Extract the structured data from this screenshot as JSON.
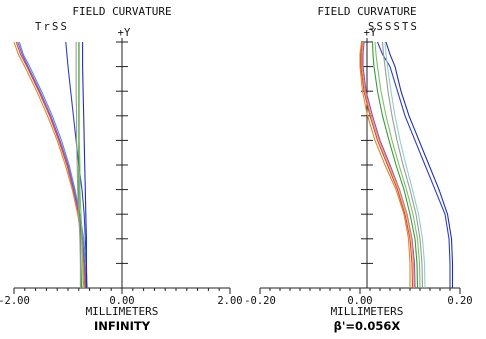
{
  "chart_data": [
    {
      "type": "line",
      "title": "FIELD CURVATURE",
      "axis_marker": "+Y",
      "xlabel": "MILLIMETERS",
      "condition": "INFINITY",
      "xlim": [
        -2.0,
        2.0
      ],
      "ylim": [
        0,
        1
      ],
      "x_tick_labels": [
        "-2.00",
        "0.00",
        "2.00"
      ],
      "legend_marks": [
        "T",
        "r",
        "S",
        "S"
      ],
      "legend_colors": [
        "#e3a14a",
        "#5a8fd6",
        "#7fbf6a",
        "#4a7fd0"
      ],
      "series": [
        {
          "color": "#2b3fc4",
          "points": [
            [
              -0.65,
              0.0
            ],
            [
              -0.66,
              0.1
            ],
            [
              -0.68,
              0.2
            ],
            [
              -0.7,
              0.3
            ],
            [
              -0.74,
              0.4
            ],
            [
              -0.8,
              0.5
            ],
            [
              -0.85,
              0.6
            ],
            [
              -0.9,
              0.7
            ],
            [
              -0.95,
              0.8
            ],
            [
              -1.0,
              0.9
            ],
            [
              -1.02,
              0.95
            ],
            [
              -1.04,
              1.0
            ]
          ]
        },
        {
          "color": "#d98a2a",
          "points": [
            [
              -0.7,
              0.0
            ],
            [
              -0.72,
              0.1
            ],
            [
              -0.75,
              0.2
            ],
            [
              -0.82,
              0.3
            ],
            [
              -0.92,
              0.4
            ],
            [
              -1.05,
              0.5
            ],
            [
              -1.2,
              0.6
            ],
            [
              -1.38,
              0.7
            ],
            [
              -1.58,
              0.8
            ],
            [
              -1.8,
              0.9
            ],
            [
              -1.92,
              0.95
            ],
            [
              -2.0,
              1.0
            ]
          ]
        },
        {
          "color": "#e04040",
          "points": [
            [
              -0.68,
              0.0
            ],
            [
              -0.7,
              0.1
            ],
            [
              -0.74,
              0.2
            ],
            [
              -0.8,
              0.3
            ],
            [
              -0.9,
              0.4
            ],
            [
              -1.02,
              0.5
            ],
            [
              -1.17,
              0.6
            ],
            [
              -1.34,
              0.7
            ],
            [
              -1.54,
              0.8
            ],
            [
              -1.76,
              0.9
            ],
            [
              -1.88,
              0.95
            ],
            [
              -1.96,
              1.0
            ]
          ]
        },
        {
          "color": "#8a4cc8",
          "points": [
            [
              -0.66,
              0.0
            ],
            [
              -0.69,
              0.1
            ],
            [
              -0.73,
              0.2
            ],
            [
              -0.79,
              0.3
            ],
            [
              -0.89,
              0.4
            ],
            [
              -1.0,
              0.5
            ],
            [
              -1.15,
              0.6
            ],
            [
              -1.32,
              0.7
            ],
            [
              -1.52,
              0.8
            ],
            [
              -1.74,
              0.9
            ],
            [
              -1.85,
              0.95
            ],
            [
              -1.93,
              1.0
            ]
          ]
        },
        {
          "color": "#4d8fdc",
          "points": [
            [
              -0.64,
              0.0
            ],
            [
              -0.67,
              0.1
            ],
            [
              -0.71,
              0.2
            ],
            [
              -0.78,
              0.3
            ],
            [
              -0.87,
              0.4
            ],
            [
              -0.98,
              0.5
            ],
            [
              -1.12,
              0.6
            ],
            [
              -1.29,
              0.7
            ],
            [
              -1.49,
              0.8
            ],
            [
              -1.71,
              0.9
            ],
            [
              -1.83,
              0.95
            ],
            [
              -1.9,
              1.0
            ]
          ]
        },
        {
          "color": "#3a9a3a",
          "points": [
            [
              -0.75,
              0.0
            ],
            [
              -0.76,
              0.1
            ],
            [
              -0.77,
              0.2
            ],
            [
              -0.79,
              0.3
            ],
            [
              -0.8,
              0.4
            ],
            [
              -0.8,
              0.5
            ],
            [
              -0.8,
              0.6
            ],
            [
              -0.8,
              0.7
            ],
            [
              -0.8,
              0.8
            ],
            [
              -0.8,
              0.9
            ],
            [
              -0.8,
              0.95
            ],
            [
              -0.8,
              1.0
            ]
          ]
        },
        {
          "color": "#7fbf6a",
          "points": [
            [
              -0.72,
              0.0
            ],
            [
              -0.73,
              0.1
            ],
            [
              -0.74,
              0.2
            ],
            [
              -0.76,
              0.3
            ],
            [
              -0.78,
              0.4
            ],
            [
              -0.78,
              0.5
            ],
            [
              -0.79,
              0.6
            ],
            [
              -0.79,
              0.7
            ],
            [
              -0.79,
              0.8
            ],
            [
              -0.79,
              0.9
            ],
            [
              -0.79,
              0.95
            ],
            [
              -0.79,
              1.0
            ]
          ]
        },
        {
          "color": "#1f2fb0",
          "points": [
            [
              -0.66,
              0.0
            ],
            [
              -0.66,
              0.1
            ],
            [
              -0.66,
              0.2
            ],
            [
              -0.67,
              0.3
            ],
            [
              -0.68,
              0.4
            ],
            [
              -0.69,
              0.5
            ],
            [
              -0.7,
              0.6
            ],
            [
              -0.71,
              0.7
            ],
            [
              -0.72,
              0.8
            ],
            [
              -0.73,
              0.9
            ],
            [
              -0.73,
              0.95
            ],
            [
              -0.73,
              1.0
            ]
          ]
        },
        {
          "color": "#9a9a9a",
          "points": [
            [
              -0.77,
              0.0
            ],
            [
              -0.77,
              0.1
            ],
            [
              -0.78,
              0.2
            ],
            [
              -0.8,
              0.3
            ],
            [
              -0.82,
              0.4
            ],
            [
              -0.83,
              0.5
            ],
            [
              -0.84,
              0.6
            ],
            [
              -0.84,
              0.7
            ],
            [
              -0.85,
              0.8
            ],
            [
              -0.85,
              0.9
            ],
            [
              -0.85,
              0.95
            ],
            [
              -0.85,
              1.0
            ]
          ]
        }
      ]
    },
    {
      "type": "line",
      "title": "FIELD CURVATURE",
      "axis_marker": "+Y",
      "xlabel": "MILLIMETERS",
      "condition": "β'=0.056X",
      "xlim": [
        -0.2,
        0.2
      ],
      "ylim": [
        0,
        1
      ],
      "x_tick_labels": [
        "-0.20",
        "0.00",
        "0.20"
      ],
      "legend_marks": [
        "S",
        "S",
        "S",
        "S",
        "T",
        "S"
      ],
      "legend_colors": [
        "#e3a14a",
        "#d98a2a",
        "#7fbf6a",
        "#9a9a9a",
        "#5a8fd6",
        "#2b3fc4"
      ],
      "series": [
        {
          "color": "#2b3fc4",
          "points": [
            [
              0.18,
              0.0
            ],
            [
              0.18,
              0.1
            ],
            [
              0.178,
              0.2
            ],
            [
              0.17,
              0.3
            ],
            [
              0.15,
              0.4
            ],
            [
              0.13,
              0.5
            ],
            [
              0.11,
              0.6
            ],
            [
              0.09,
              0.7
            ],
            [
              0.075,
              0.8
            ],
            [
              0.06,
              0.9
            ],
            [
              0.045,
              0.95
            ],
            [
              0.035,
              1.0
            ]
          ]
        },
        {
          "color": "#1f2fb0",
          "points": [
            [
              0.185,
              0.0
            ],
            [
              0.185,
              0.1
            ],
            [
              0.183,
              0.2
            ],
            [
              0.175,
              0.3
            ],
            [
              0.158,
              0.4
            ],
            [
              0.138,
              0.5
            ],
            [
              0.118,
              0.6
            ],
            [
              0.098,
              0.7
            ],
            [
              0.082,
              0.8
            ],
            [
              0.07,
              0.9
            ],
            [
              0.06,
              0.95
            ],
            [
              0.052,
              1.0
            ]
          ]
        },
        {
          "color": "#d98a2a",
          "points": [
            [
              0.1,
              0.0
            ],
            [
              0.1,
              0.1
            ],
            [
              0.097,
              0.2
            ],
            [
              0.088,
              0.3
            ],
            [
              0.072,
              0.4
            ],
            [
              0.05,
              0.5
            ],
            [
              0.03,
              0.6
            ],
            [
              0.015,
              0.7
            ],
            [
              0.005,
              0.8
            ],
            [
              0.0,
              0.9
            ],
            [
              0.0,
              0.95
            ],
            [
              0.003,
              1.0
            ]
          ]
        },
        {
          "color": "#e04040",
          "points": [
            [
              0.105,
              0.0
            ],
            [
              0.104,
              0.1
            ],
            [
              0.1,
              0.2
            ],
            [
              0.09,
              0.3
            ],
            [
              0.075,
              0.4
            ],
            [
              0.055,
              0.5
            ],
            [
              0.035,
              0.6
            ],
            [
              0.02,
              0.7
            ],
            [
              0.008,
              0.8
            ],
            [
              0.002,
              0.9
            ],
            [
              0.002,
              0.95
            ],
            [
              0.005,
              1.0
            ]
          ]
        },
        {
          "color": "#8a4cc8",
          "points": [
            [
              0.11,
              0.0
            ],
            [
              0.109,
              0.1
            ],
            [
              0.104,
              0.2
            ],
            [
              0.094,
              0.3
            ],
            [
              0.079,
              0.4
            ],
            [
              0.06,
              0.5
            ],
            [
              0.04,
              0.6
            ],
            [
              0.025,
              0.7
            ],
            [
              0.012,
              0.8
            ],
            [
              0.006,
              0.9
            ],
            [
              0.006,
              0.95
            ],
            [
              0.008,
              1.0
            ]
          ]
        },
        {
          "color": "#3a9a3a",
          "points": [
            [
              0.115,
              0.0
            ],
            [
              0.114,
              0.1
            ],
            [
              0.11,
              0.2
            ],
            [
              0.1,
              0.3
            ],
            [
              0.088,
              0.4
            ],
            [
              0.072,
              0.5
            ],
            [
              0.058,
              0.6
            ],
            [
              0.045,
              0.7
            ],
            [
              0.035,
              0.8
            ],
            [
              0.028,
              0.9
            ],
            [
              0.026,
              0.95
            ],
            [
              0.025,
              1.0
            ]
          ]
        },
        {
          "color": "#7fbf6a",
          "points": [
            [
              0.12,
              0.0
            ],
            [
              0.119,
              0.1
            ],
            [
              0.115,
              0.2
            ],
            [
              0.106,
              0.3
            ],
            [
              0.093,
              0.4
            ],
            [
              0.078,
              0.5
            ],
            [
              0.064,
              0.6
            ],
            [
              0.052,
              0.7
            ],
            [
              0.042,
              0.8
            ],
            [
              0.035,
              0.9
            ],
            [
              0.032,
              0.95
            ],
            [
              0.03,
              1.0
            ]
          ]
        },
        {
          "color": "#8fd0c8",
          "points": [
            [
              0.13,
              0.0
            ],
            [
              0.129,
              0.1
            ],
            [
              0.125,
              0.2
            ],
            [
              0.117,
              0.3
            ],
            [
              0.105,
              0.4
            ],
            [
              0.092,
              0.5
            ],
            [
              0.08,
              0.6
            ],
            [
              0.07,
              0.7
            ],
            [
              0.062,
              0.8
            ],
            [
              0.055,
              0.9
            ],
            [
              0.052,
              0.95
            ],
            [
              0.05,
              1.0
            ]
          ]
        },
        {
          "color": "#9a9a9a",
          "points": [
            [
              0.125,
              0.0
            ],
            [
              0.124,
              0.1
            ],
            [
              0.12,
              0.2
            ],
            [
              0.112,
              0.3
            ],
            [
              0.1,
              0.4
            ],
            [
              0.086,
              0.5
            ],
            [
              0.074,
              0.6
            ],
            [
              0.064,
              0.7
            ],
            [
              0.056,
              0.8
            ],
            [
              0.05,
              0.9
            ],
            [
              0.047,
              0.95
            ],
            [
              0.045,
              1.0
            ]
          ]
        },
        {
          "color": "#e3a14a",
          "points": [
            [
              0.108,
              0.0
            ],
            [
              0.107,
              0.1
            ],
            [
              0.103,
              0.2
            ],
            [
              0.093,
              0.3
            ],
            [
              0.078,
              0.4
            ],
            [
              0.058,
              0.5
            ],
            [
              0.038,
              0.6
            ],
            [
              0.022,
              0.7
            ],
            [
              0.01,
              0.8
            ],
            [
              0.004,
              0.9
            ],
            [
              0.004,
              0.95
            ],
            [
              0.006,
              1.0
            ]
          ]
        }
      ]
    }
  ]
}
